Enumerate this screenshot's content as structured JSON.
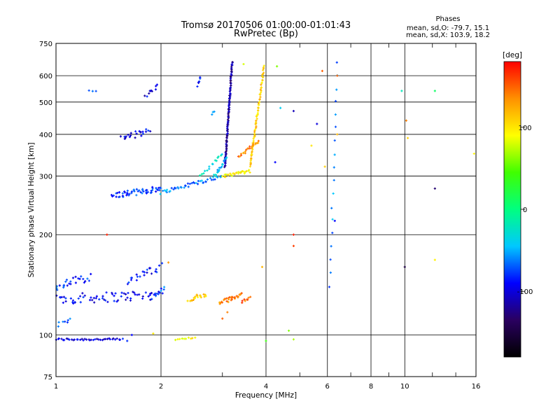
{
  "chart_data": {
    "type": "scatter",
    "title": "Tromsø 20170506 01:00:00-01:01:43",
    "subtitle": "RwPretec (Bp)",
    "xlabel": "Frequency [MHz]",
    "ylabel": "Stationary phase Virtual Height [km]",
    "x_scale": "log",
    "y_scale": "log",
    "xlim": [
      1,
      16
    ],
    "ylim": [
      75,
      750
    ],
    "x_ticks": [
      1,
      2,
      4,
      6,
      8,
      10,
      16
    ],
    "x_minor_ticks": [
      3,
      5,
      7,
      9,
      12,
      14
    ],
    "x_tick_labels": [
      "1",
      "2",
      "4",
      "6",
      "8",
      "10",
      "16"
    ],
    "y_ticks": [
      75,
      100,
      200,
      300,
      400,
      500,
      600,
      750
    ],
    "y_tick_labels": [
      "75",
      "100",
      "200",
      "300",
      "400",
      "500",
      "600",
      "750"
    ],
    "grid": true,
    "phase_info": {
      "heading": "Phases",
      "line_o": "mean, sd,O: -79.7, 15.1",
      "line_x": "mean, sd,X: 103.9, 18.2"
    },
    "colorbar": {
      "label": "[deg]",
      "range": [
        -180,
        180
      ],
      "ticks": [
        100,
        0,
        -100
      ],
      "tick_labels": [
        "100",
        "0",
        "-100"
      ],
      "colors": [
        "#000000",
        "#2a0060",
        "#0000ff",
        "#00c8ff",
        "#00ff80",
        "#40ff00",
        "#ffff00",
        "#ff9000",
        "#ff0000"
      ]
    },
    "trace_segments": [
      {
        "x0": 1.0,
        "x1": 1.55,
        "y0": 97,
        "y1": 97,
        "n": 40,
        "jitter": 0.015,
        "phase": -100
      },
      {
        "x0": 1.0,
        "x1": 2.0,
        "y0": 128,
        "y1": 132,
        "n": 70,
        "jitter": 0.07,
        "phase": -95
      },
      {
        "x0": 1.0,
        "x1": 1.25,
        "y0": 140,
        "y1": 150,
        "n": 25,
        "jitter": 0.06,
        "phase": -80
      },
      {
        "x0": 1.6,
        "x1": 2.0,
        "y0": 145,
        "y1": 160,
        "n": 22,
        "jitter": 0.06,
        "phase": -90
      },
      {
        "x0": 1.0,
        "x1": 1.1,
        "y0": 106,
        "y1": 112,
        "n": 8,
        "jitter": 0.03,
        "phase": -60
      },
      {
        "x0": 1.9,
        "x1": 2.05,
        "y0": 132,
        "y1": 138,
        "n": 8,
        "jitter": 0.03,
        "phase": -70
      },
      {
        "x0": 1.45,
        "x1": 2.0,
        "y0": 262,
        "y1": 275,
        "n": 55,
        "jitter": 0.04,
        "phase": -80
      },
      {
        "x0": 2.0,
        "x1": 3.0,
        "y0": 268,
        "y1": 300,
        "n": 45,
        "jitter": 0.025,
        "phase": -60
      },
      {
        "x0": 2.6,
        "x1": 3.0,
        "y0": 300,
        "y1": 350,
        "n": 15,
        "jitter": 0.02,
        "phase": -30
      },
      {
        "x0": 1.55,
        "x1": 1.85,
        "y0": 390,
        "y1": 410,
        "n": 22,
        "jitter": 0.04,
        "phase": -95
      },
      {
        "x0": 1.8,
        "x1": 1.95,
        "y0": 520,
        "y1": 560,
        "n": 10,
        "jitter": 0.03,
        "phase": -100
      },
      {
        "x0": 1.25,
        "x1": 1.3,
        "y0": 540,
        "y1": 540,
        "n": 3,
        "jitter": 0.02,
        "phase": -80
      },
      {
        "x0": 3.05,
        "x1": 3.2,
        "y0": 320,
        "y1": 660,
        "n": 110,
        "jitter": 0.01,
        "phase": -115
      },
      {
        "x0": 2.85,
        "x1": 3.1,
        "y0": 300,
        "y1": 340,
        "n": 20,
        "jitter": 0.02,
        "phase": -45
      },
      {
        "x0": 3.0,
        "x1": 3.6,
        "y0": 300,
        "y1": 310,
        "n": 28,
        "jitter": 0.02,
        "phase": 95
      },
      {
        "x0": 3.6,
        "x1": 3.95,
        "y0": 320,
        "y1": 640,
        "n": 70,
        "jitter": 0.012,
        "phase": 110
      },
      {
        "x0": 3.35,
        "x1": 3.8,
        "y0": 345,
        "y1": 380,
        "n": 22,
        "jitter": 0.02,
        "phase": 140
      },
      {
        "x0": 2.4,
        "x1": 2.7,
        "y0": 128,
        "y1": 132,
        "n": 18,
        "jitter": 0.03,
        "phase": 110
      },
      {
        "x0": 2.95,
        "x1": 3.4,
        "y0": 125,
        "y1": 132,
        "n": 30,
        "jitter": 0.03,
        "phase": 140
      },
      {
        "x0": 3.4,
        "x1": 3.6,
        "y0": 126,
        "y1": 130,
        "n": 8,
        "jitter": 0.02,
        "phase": 150
      },
      {
        "x0": 2.2,
        "x1": 2.5,
        "y0": 97,
        "y1": 98,
        "n": 10,
        "jitter": 0.01,
        "phase": 95
      },
      {
        "x0": 2.55,
        "x1": 2.6,
        "y0": 560,
        "y1": 590,
        "n": 6,
        "jitter": 0.02,
        "phase": -80
      },
      {
        "x0": 2.8,
        "x1": 2.85,
        "y0": 460,
        "y1": 470,
        "n": 3,
        "jitter": 0.01,
        "phase": -70
      },
      {
        "x0": 6.1,
        "x1": 6.4,
        "y0": 140,
        "y1": 660,
        "n": 18,
        "jitter": 0.02,
        "phase": -60
      }
    ],
    "scattered_points": [
      {
        "x": 1.4,
        "y": 200,
        "phase": 170
      },
      {
        "x": 3.45,
        "y": 650,
        "phase": 80
      },
      {
        "x": 4.3,
        "y": 640,
        "phase": 60
      },
      {
        "x": 4.8,
        "y": 200,
        "phase": 170
      },
      {
        "x": 4.8,
        "y": 185,
        "phase": 160
      },
      {
        "x": 4.8,
        "y": 470,
        "phase": -110
      },
      {
        "x": 5.8,
        "y": 620,
        "phase": 150
      },
      {
        "x": 5.6,
        "y": 430,
        "phase": -100
      },
      {
        "x": 4.25,
        "y": 330,
        "phase": -90
      },
      {
        "x": 4.4,
        "y": 480,
        "phase": -40
      },
      {
        "x": 5.4,
        "y": 370,
        "phase": 100
      },
      {
        "x": 5.9,
        "y": 320,
        "phase": 110
      },
      {
        "x": 6.4,
        "y": 600,
        "phase": 150
      },
      {
        "x": 6.4,
        "y": 400,
        "phase": 120
      },
      {
        "x": 6.3,
        "y": 220,
        "phase": -90
      },
      {
        "x": 9.8,
        "y": 540,
        "phase": -20
      },
      {
        "x": 10.1,
        "y": 440,
        "phase": 140
      },
      {
        "x": 10.2,
        "y": 390,
        "phase": 110
      },
      {
        "x": 10.0,
        "y": 160,
        "phase": -150
      },
      {
        "x": 12.2,
        "y": 540,
        "phase": 10
      },
      {
        "x": 12.2,
        "y": 168,
        "phase": 95
      },
      {
        "x": 12.2,
        "y": 275,
        "phase": -130
      },
      {
        "x": 15.8,
        "y": 350,
        "phase": 95
      },
      {
        "x": 4.65,
        "y": 103,
        "phase": 60
      },
      {
        "x": 4.8,
        "y": 97,
        "phase": 70
      },
      {
        "x": 4.0,
        "y": 96,
        "phase": 40
      },
      {
        "x": 3.0,
        "y": 112,
        "phase": 150
      },
      {
        "x": 3.1,
        "y": 117,
        "phase": 140
      },
      {
        "x": 2.1,
        "y": 165,
        "phase": 130
      },
      {
        "x": 3.9,
        "y": 160,
        "phase": 120
      },
      {
        "x": 1.9,
        "y": 101,
        "phase": 100
      },
      {
        "x": 1.6,
        "y": 96,
        "phase": -80
      },
      {
        "x": 1.65,
        "y": 100,
        "phase": -90
      }
    ]
  }
}
